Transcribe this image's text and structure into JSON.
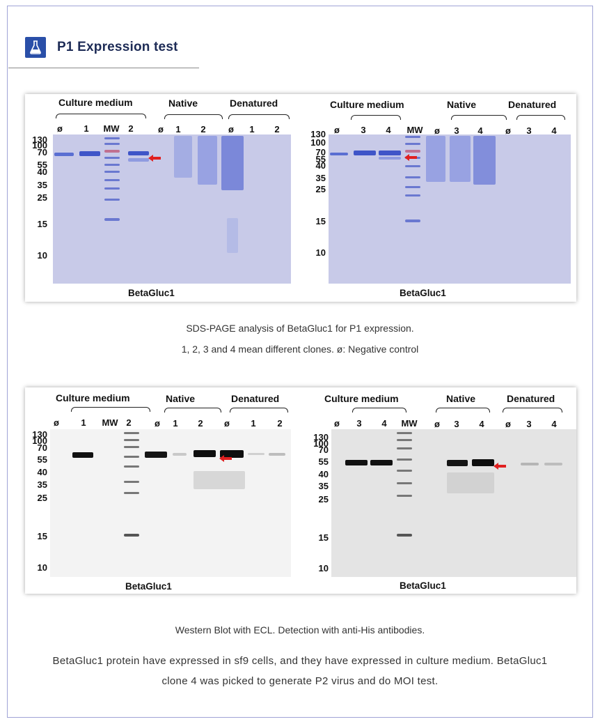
{
  "section": {
    "title": "P1 Expression test",
    "icon": "flask-icon",
    "accent": "#2a4fa8"
  },
  "figure1": {
    "left_panel": {
      "groups": [
        "Culture medium",
        "Native",
        "Denatured"
      ],
      "lanes": [
        "ø",
        "1",
        "MW",
        "2",
        "ø",
        "1",
        "2",
        "ø",
        "1",
        "2"
      ],
      "mw_markers": [
        "130",
        "100",
        "70",
        "55",
        "40",
        "35",
        "25",
        "15",
        "10"
      ],
      "label": "BetaGluc1"
    },
    "right_panel": {
      "groups": [
        "Culture medium",
        "Native",
        "Denatured"
      ],
      "lanes": [
        "ø",
        "3",
        "4",
        "MW",
        "ø",
        "3",
        "4",
        "ø",
        "3",
        "4"
      ],
      "mw_markers": [
        "130",
        "100",
        "70",
        "55",
        "40",
        "35",
        "25",
        "15",
        "10"
      ],
      "label": "BetaGluc1"
    },
    "caption_line1": "SDS-PAGE analysis of BetaGluc1 for P1 expression.",
    "caption_line2": "1, 2, 3 and 4 mean different clones. ø: Negative control"
  },
  "figure2": {
    "left_panel": {
      "groups": [
        "Culture medium",
        "Native",
        "Denatured"
      ],
      "lanes": [
        "ø",
        "1",
        "MW",
        "2",
        "ø",
        "1",
        "2",
        "ø",
        "1",
        "2"
      ],
      "mw_markers": [
        "130",
        "100",
        "70",
        "55",
        "40",
        "35",
        "25",
        "15",
        "10"
      ],
      "label": "BetaGluc1"
    },
    "right_panel": {
      "groups": [
        "Culture medium",
        "Native",
        "Denatured"
      ],
      "lanes": [
        "ø",
        "3",
        "4",
        "MW",
        "ø",
        "3",
        "4",
        "ø",
        "3",
        "4"
      ],
      "mw_markers": [
        "130",
        "100",
        "70",
        "55",
        "40",
        "35",
        "25",
        "15",
        "10"
      ],
      "label": "BetaGluc1"
    },
    "caption": "Western Blot with ECL. Detection with anti-His antibodies."
  },
  "summary": "BetaGluc1 protein have expressed in sf9 cells, and they have expressed in culture medium. BetaGluc1 clone 4 was picked to generate P2 virus and do MOI test.",
  "colors": {
    "frame_border": "#9fa3d6",
    "title": "#1d2b56",
    "coomassie_gel": "#c8cae8",
    "band_blue": "#3f55c8",
    "arrow_red": "#e02020"
  }
}
